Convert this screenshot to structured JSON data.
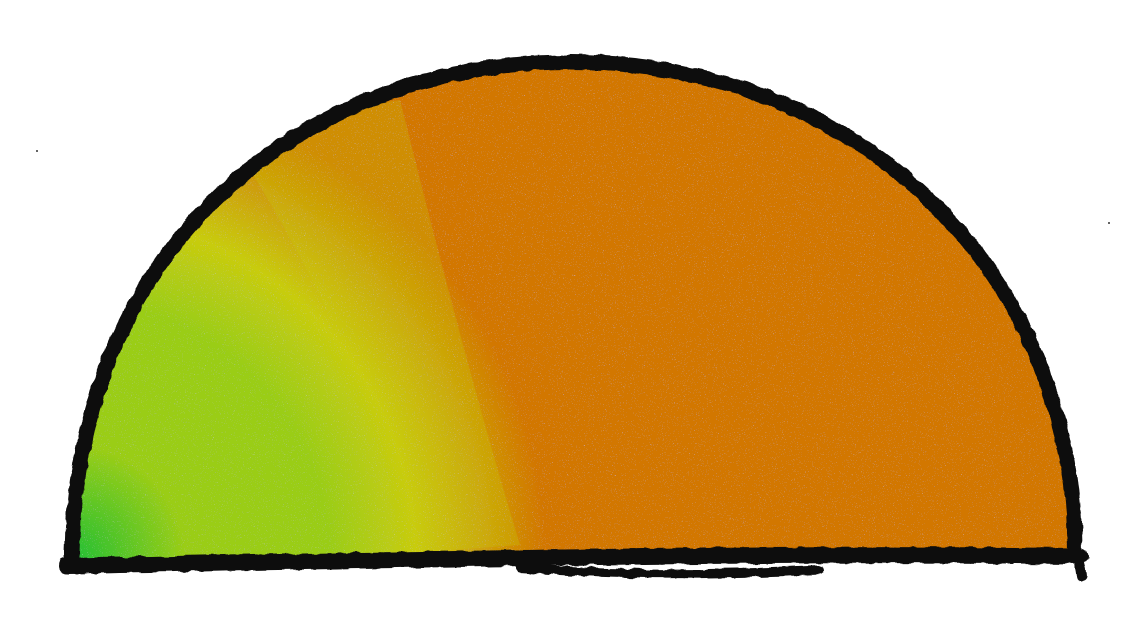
{
  "illustration": {
    "shape": "semicircle",
    "fill_colors": {
      "green_dark": "#1fbf35",
      "green_light": "#9acd17",
      "yellow": "#c8cc10",
      "orange": "#d27700"
    },
    "outline_color": "#0a0a0a",
    "background_color": "#ffffff"
  }
}
